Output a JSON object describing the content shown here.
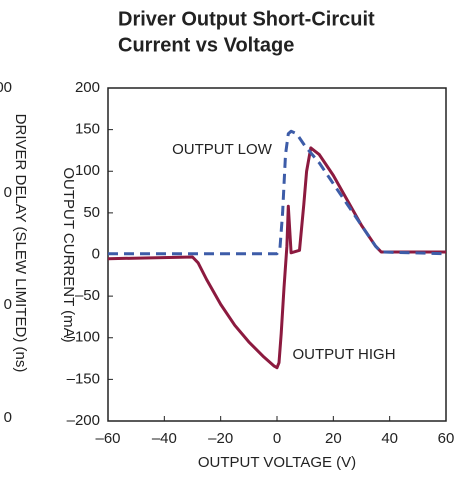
{
  "left_fragment": {
    "y_axis_label": "DRIVER DELAY (SLEW LIMITED) (ns)",
    "tick_labels": [
      "00",
      "0",
      "0",
      "0"
    ]
  },
  "chart_data": {
    "type": "line",
    "title": [
      "Driver Output Short-Circuit",
      "Current vs Voltage"
    ],
    "xlabel": "OUTPUT VOLTAGE (V)",
    "ylabel": "OUTPUT CURRENT (mA)",
    "annotations": [
      "OUTPUT LOW",
      "OUTPUT HIGH"
    ],
    "xlim": [
      -60,
      60
    ],
    "xticks": [
      {
        "value": -60,
        "label": "–60"
      },
      {
        "value": -40,
        "label": "–40"
      },
      {
        "value": -20,
        "label": "–20"
      },
      0,
      20,
      40,
      60
    ],
    "ylim": [
      -200,
      200
    ],
    "yticks": [
      {
        "value": -200,
        "label": "–200"
      },
      {
        "value": -150,
        "label": "–150"
      },
      {
        "value": -100,
        "label": "–100"
      },
      {
        "value": -50,
        "label": "–50"
      },
      0,
      50,
      100,
      150,
      200
    ],
    "grid": false,
    "series": [
      {
        "name": "OUTPUT HIGH",
        "color": "#8c1a3f",
        "dash": false,
        "x": [
          -60,
          -30,
          -28,
          -25,
          -20,
          -15,
          -10,
          -5,
          -1,
          0,
          0.7,
          1.5,
          2.5,
          3.5,
          4,
          5,
          8,
          9.5,
          10.5,
          12,
          15,
          20,
          25,
          30,
          35,
          37,
          60
        ],
        "values": [
          -5,
          -3,
          -10,
          -30,
          -60,
          -85,
          -105,
          -122,
          -134,
          -136,
          -130,
          -95,
          -40,
          10,
          58,
          2,
          5,
          60,
          100,
          128,
          120,
          95,
          65,
          35,
          10,
          3,
          3
        ]
      },
      {
        "name": "OUTPUT LOW",
        "color": "#3d5ca8",
        "dash": true,
        "x": [
          -60,
          0,
          1,
          2,
          3,
          4,
          5,
          7,
          10,
          15,
          20,
          25,
          30,
          35,
          37,
          60
        ],
        "values": [
          1,
          1,
          5,
          50,
          120,
          145,
          148,
          145,
          130,
          110,
          85,
          60,
          35,
          10,
          3,
          1
        ]
      }
    ]
  }
}
